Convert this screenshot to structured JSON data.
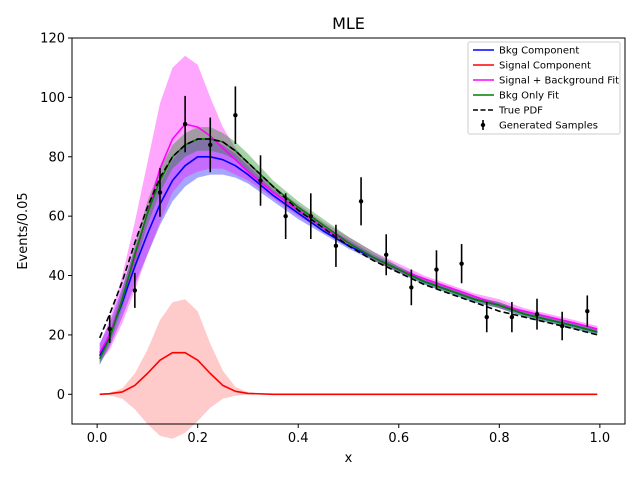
{
  "chart_data": {
    "type": "line",
    "title": "MLE",
    "xlabel": "x",
    "ylabel": "Events/0.05",
    "xlim": [
      -0.05,
      1.05
    ],
    "ylim": [
      -10,
      120
    ],
    "xticks": [
      0.0,
      0.2,
      0.4,
      0.6,
      0.8,
      1.0
    ],
    "xtick_labels": [
      "0.0",
      "0.2",
      "0.4",
      "0.6",
      "0.8",
      "1.0"
    ],
    "yticks": [
      0,
      20,
      40,
      60,
      80,
      100,
      120
    ],
    "ytick_labels": [
      "0",
      "20",
      "40",
      "60",
      "80",
      "100",
      "120"
    ],
    "legend_position": "top-right",
    "legend": [
      {
        "label": "Bkg Component",
        "color": "#0000ff",
        "style": "solid"
      },
      {
        "label": "Signal Component",
        "color": "#ff0000",
        "style": "solid"
      },
      {
        "label": "Signal + Background Fit",
        "color": "#ff00ff",
        "style": "solid"
      },
      {
        "label": "Bkg Only Fit",
        "color": "#008000",
        "style": "solid"
      },
      {
        "label": "True PDF",
        "color": "#000000",
        "style": "dashed"
      },
      {
        "label": "Generated Samples",
        "color": "#000000",
        "style": "errorbar"
      }
    ],
    "x": [
      0.005,
      0.025,
      0.05,
      0.075,
      0.1,
      0.125,
      0.15,
      0.175,
      0.2,
      0.225,
      0.25,
      0.275,
      0.3,
      0.35,
      0.4,
      0.45,
      0.5,
      0.55,
      0.6,
      0.65,
      0.7,
      0.75,
      0.8,
      0.85,
      0.9,
      0.95,
      0.995
    ],
    "series": [
      {
        "name": "Bkg Component",
        "color": "#0000ff",
        "values": [
          13,
          20,
          31,
          43,
          54,
          64,
          72,
          77,
          80,
          80,
          79,
          77,
          74,
          67,
          61,
          55,
          50,
          46,
          42,
          38,
          35,
          32,
          30,
          27,
          25,
          23,
          21
        ],
        "band_lower": [
          10,
          16,
          26,
          37,
          47,
          57,
          65,
          70,
          73,
          74,
          74,
          73,
          71,
          65,
          59,
          54,
          49,
          45,
          41,
          37,
          34,
          31,
          29,
          26,
          24,
          22,
          20
        ],
        "band_upper": [
          17,
          24,
          36,
          49,
          61,
          71,
          79,
          84,
          86,
          86,
          84,
          81,
          77,
          69,
          63,
          57,
          52,
          47,
          43,
          39,
          36,
          33,
          31,
          28,
          26,
          24,
          22
        ],
        "band_color": "#0000ff"
      },
      {
        "name": "Signal Component",
        "color": "#ff0000",
        "values": [
          0,
          0.2,
          0.8,
          3,
          7,
          11.5,
          14,
          14,
          11.5,
          7,
          3,
          1,
          0.3,
          0,
          0,
          0,
          0,
          0,
          0,
          0,
          0,
          0,
          0,
          0,
          0,
          0,
          0
        ],
        "band_lower": [
          0,
          -0.3,
          -1.5,
          -5,
          -10,
          -14,
          -15,
          -13,
          -9,
          -4.5,
          -1.5,
          -0.5,
          -0.1,
          0,
          0,
          0,
          0,
          0,
          0,
          0,
          0,
          0,
          0,
          0,
          0,
          0,
          0
        ],
        "band_upper": [
          0,
          0.5,
          2,
          7,
          15,
          25,
          31,
          32,
          28,
          17,
          8,
          2.5,
          0.7,
          0,
          0,
          0,
          0,
          0,
          0,
          0,
          0,
          0,
          0,
          0,
          0,
          0,
          0
        ],
        "band_color": "#ff6666"
      },
      {
        "name": "Signal + Background Fit",
        "color": "#ff00ff",
        "values": [
          14,
          20,
          32,
          46,
          61,
          76,
          86,
          91,
          90,
          87,
          83,
          79,
          75,
          68,
          62,
          56,
          51,
          46,
          42,
          39,
          36,
          33,
          30,
          28,
          26,
          24,
          22
        ],
        "band_lower": [
          11,
          15,
          24,
          35,
          47,
          58,
          68,
          73,
          75,
          76,
          76,
          74,
          72,
          66,
          60,
          55,
          50,
          45,
          41,
          38,
          35,
          32,
          29,
          27,
          25,
          23,
          21
        ],
        "band_upper": [
          17,
          25,
          40,
          58,
          78,
          98,
          110,
          114,
          111,
          100,
          90,
          83,
          78,
          70,
          64,
          58,
          53,
          48,
          44,
          40,
          37,
          34,
          32,
          29,
          27,
          25,
          23
        ],
        "band_color": "#ff00ff"
      },
      {
        "name": "Bkg Only Fit",
        "color": "#008000",
        "values": [
          12,
          19,
          32,
          47,
          61,
          72,
          80,
          84,
          86,
          86,
          85,
          82,
          78,
          70,
          63,
          57,
          51,
          46,
          42,
          38,
          35,
          32,
          30,
          27,
          25,
          23,
          21
        ],
        "band_lower": [
          10,
          17,
          29,
          43,
          57,
          68,
          76,
          80,
          82,
          82,
          81,
          79,
          75,
          68,
          61,
          55,
          50,
          45,
          41,
          37,
          34,
          31,
          29,
          26,
          24,
          22,
          20
        ],
        "band_upper": [
          14,
          21,
          35,
          50,
          65,
          76,
          84,
          88,
          90,
          90,
          88,
          85,
          81,
          72,
          65,
          59,
          53,
          48,
          43,
          39,
          36,
          33,
          31,
          28,
          26,
          24,
          22
        ],
        "band_color": "#008000"
      },
      {
        "name": "True PDF",
        "color": "#000000",
        "style": "dashed",
        "values": [
          19,
          27,
          38,
          51,
          63,
          73,
          80,
          84,
          86,
          86,
          85,
          82,
          78,
          70,
          62,
          56,
          50,
          45,
          41,
          37,
          34,
          31,
          28,
          26,
          24,
          22,
          20
        ]
      }
    ],
    "samples": {
      "name": "Generated Samples",
      "x": [
        0.025,
        0.075,
        0.125,
        0.175,
        0.225,
        0.275,
        0.325,
        0.375,
        0.425,
        0.475,
        0.525,
        0.575,
        0.625,
        0.675,
        0.725,
        0.775,
        0.825,
        0.875,
        0.925,
        0.975
      ],
      "y": [
        22,
        35,
        68,
        91,
        84,
        94,
        72,
        60,
        60,
        50,
        65,
        47,
        36,
        42,
        44,
        26,
        26,
        27,
        23,
        28
      ],
      "err": [
        4.7,
        5.9,
        8.2,
        9.5,
        9.2,
        9.7,
        8.5,
        7.7,
        7.7,
        7.1,
        8.1,
        6.9,
        6.0,
        6.5,
        6.6,
        5.1,
        5.1,
        5.2,
        4.8,
        5.3
      ]
    }
  }
}
